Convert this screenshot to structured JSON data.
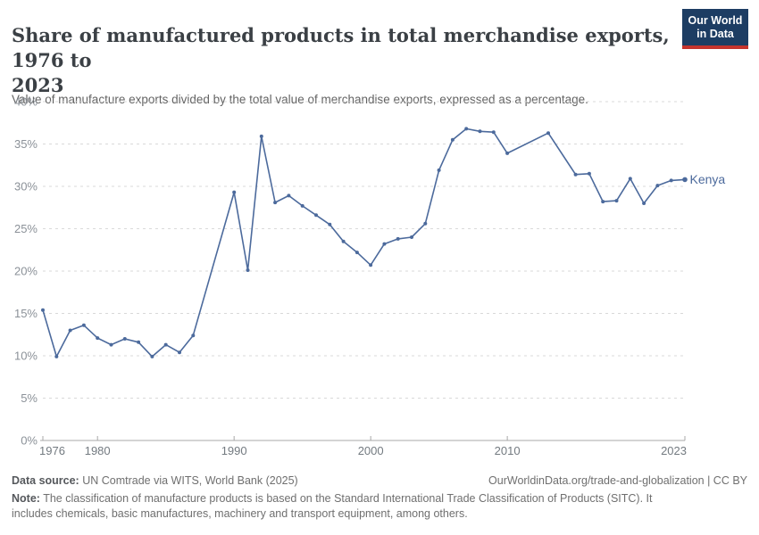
{
  "header": {
    "title": "Share of manufactured products in total merchandise exports, 1976 to 2023",
    "title_lines": [
      "Share of manufactured products in total merchandise exports, 1976 to",
      "2023"
    ],
    "subtitle": "Value of manufacture exports divided by the total value of merchandise exports, expressed as a percentage.",
    "logo": {
      "line1": "Our World",
      "line2": "in Data"
    }
  },
  "chart_data": {
    "type": "line",
    "title": "Share of manufactured products in total merchandise exports, 1976 to 2023",
    "xlabel": "",
    "ylabel": "",
    "x_range": [
      1976,
      2023
    ],
    "ylim": [
      0,
      40
    ],
    "grid": "horizontal-dashed",
    "legend_position": "end-of-line-label",
    "missing_years": [
      1988,
      1989,
      2011,
      2012,
      2014
    ],
    "yticks": [
      {
        "v": 0,
        "label": "0%"
      },
      {
        "v": 5,
        "label": "5%"
      },
      {
        "v": 10,
        "label": "10%"
      },
      {
        "v": 15,
        "label": "15%"
      },
      {
        "v": 20,
        "label": "20%"
      },
      {
        "v": 25,
        "label": "25%"
      },
      {
        "v": 30,
        "label": "30%"
      },
      {
        "v": 35,
        "label": "35%"
      },
      {
        "v": 40,
        "label": "40%"
      }
    ],
    "xticks": [
      {
        "year": 1976,
        "label": "1976"
      },
      {
        "year": 1980,
        "label": "1980"
      },
      {
        "year": 1990,
        "label": "1990"
      },
      {
        "year": 2000,
        "label": "2000"
      },
      {
        "year": 2010,
        "label": "2010"
      },
      {
        "year": 2023,
        "label": "2023"
      }
    ],
    "series": [
      {
        "name": "Kenya",
        "color": "#4c6a9c",
        "points": [
          [
            1976,
            15.4
          ],
          [
            1977,
            9.9
          ],
          [
            1978,
            13.0
          ],
          [
            1979,
            13.6
          ],
          [
            1980,
            12.1
          ],
          [
            1981,
            11.3
          ],
          [
            1982,
            12.0
          ],
          [
            1983,
            11.6
          ],
          [
            1984,
            9.9
          ],
          [
            1985,
            11.3
          ],
          [
            1986,
            10.4
          ],
          [
            1987,
            12.4
          ],
          [
            1990,
            29.3
          ],
          [
            1991,
            20.1
          ],
          [
            1992,
            35.9
          ],
          [
            1993,
            28.1
          ],
          [
            1994,
            28.9
          ],
          [
            1995,
            27.7
          ],
          [
            1996,
            26.6
          ],
          [
            1997,
            25.5
          ],
          [
            1998,
            23.5
          ],
          [
            1999,
            22.2
          ],
          [
            2000,
            20.7
          ],
          [
            2001,
            23.2
          ],
          [
            2002,
            23.8
          ],
          [
            2003,
            24.0
          ],
          [
            2004,
            25.6
          ],
          [
            2005,
            31.9
          ],
          [
            2006,
            35.5
          ],
          [
            2007,
            36.8
          ],
          [
            2008,
            36.5
          ],
          [
            2009,
            36.4
          ],
          [
            2010,
            33.9
          ],
          [
            2013,
            36.3
          ],
          [
            2015,
            31.4
          ],
          [
            2016,
            31.5
          ],
          [
            2017,
            28.2
          ],
          [
            2018,
            28.3
          ],
          [
            2019,
            30.9
          ],
          [
            2020,
            28.0
          ],
          [
            2021,
            30.1
          ],
          [
            2022,
            30.7
          ],
          [
            2023,
            30.8
          ]
        ]
      }
    ]
  },
  "footer": {
    "datasource_label": "Data source:",
    "datasource_text": " UN Comtrade via WITS, World Bank (2025)",
    "link_text": "OurWorldinData.org/trade-and-globalization | CC BY",
    "note_label": "Note:",
    "note_text": " The classification of manufacture products is based on the Standard International Trade Classification of Products (SITC). It includes chemicals, basic manufactures, machinery and transport equipment, among others."
  },
  "colors": {
    "series": "#4c6a9c",
    "grid": "#d9d9d9",
    "axis": "#a8a8a8",
    "ytick_label": "#8b9198",
    "xtick_label": "#737a80",
    "logo_bg": "#1d3d63",
    "logo_red": "#c5342d"
  }
}
